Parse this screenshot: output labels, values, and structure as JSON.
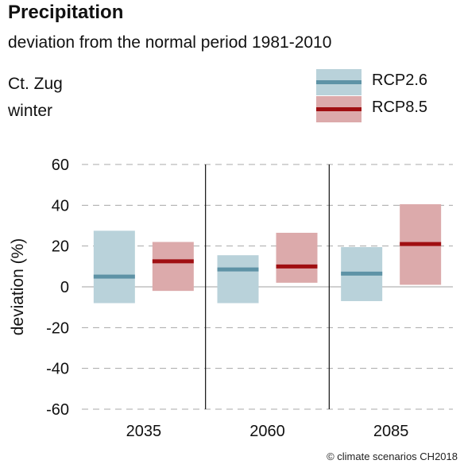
{
  "header": {
    "title": "Precipitation",
    "subtitle": "deviation from the normal period 1981-2010",
    "region": "Ct. Zug",
    "season": "winter"
  },
  "legend": [
    {
      "label": "RCP2.6",
      "box_color": "#b9d2da",
      "line_color": "#5e93a6"
    },
    {
      "label": "RCP8.5",
      "box_color": "#dcaaab",
      "line_color": "#a00f12"
    }
  ],
  "credit": "© climate scenarios CH2018",
  "chart_data": {
    "type": "box-range",
    "title": "Precipitation",
    "subtitle": "deviation from the normal period 1981-2010",
    "xlabel": "",
    "ylabel": "deviation (%)",
    "ylim": [
      -60,
      60
    ],
    "yticks": [
      -60,
      -40,
      -20,
      0,
      20,
      40,
      60
    ],
    "grid": "dashed horizontal",
    "legend_position": "top-right",
    "categories": [
      "2035",
      "2060",
      "2085"
    ],
    "series": [
      {
        "name": "RCP2.6",
        "box_color": "#b9d2da",
        "line_color": "#5e93a6",
        "low": [
          -8,
          -8,
          -7
        ],
        "median": [
          5,
          8.5,
          6.5
        ],
        "high": [
          27.5,
          15.5,
          19.5
        ]
      },
      {
        "name": "RCP8.5",
        "box_color": "#dcaaab",
        "line_color": "#a00f12",
        "low": [
          -2,
          2,
          1
        ],
        "median": [
          12.5,
          10,
          21
        ],
        "high": [
          22,
          26.5,
          40.5
        ]
      }
    ]
  }
}
